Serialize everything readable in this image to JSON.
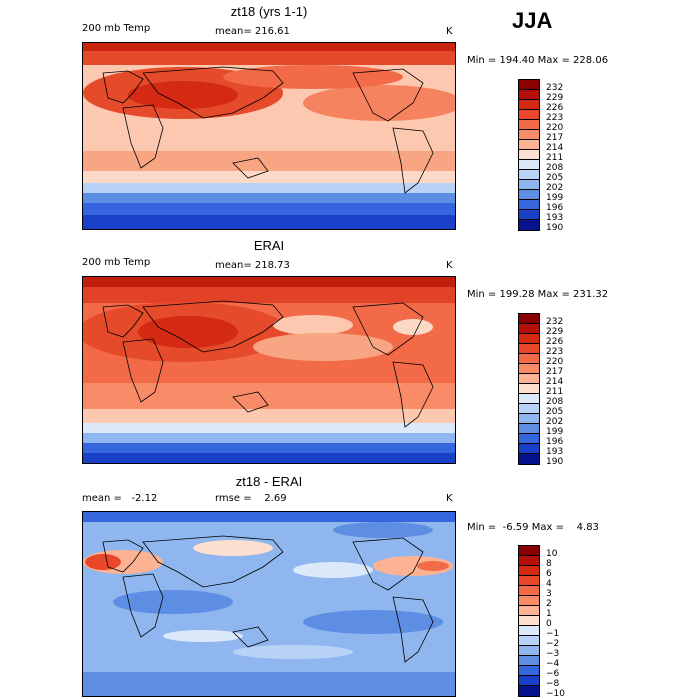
{
  "season": "JJA",
  "panels": [
    {
      "title": "zt18 (yrs 1-1)",
      "left_label": "200 mb Temp",
      "center_label": "mean= 216.61",
      "right_label": "",
      "units": "K",
      "min_max": "Min = 194.40 Max = 228.06",
      "colorbar_labels": [
        "232",
        "229",
        "226",
        "223",
        "220",
        "217",
        "214",
        "211",
        "208",
        "205",
        "202",
        "199",
        "196",
        "193",
        "190"
      ],
      "colorbar_colors": [
        "#8b0000",
        "#b40f0a",
        "#d42a14",
        "#e8472a",
        "#f26a47",
        "#f88b68",
        "#fcb293",
        "#fde0cf",
        "#dbe9fb",
        "#b9d3f6",
        "#8fb6ef",
        "#5e8ee3",
        "#3566dd",
        "#1a40c8",
        "#07128f"
      ]
    },
    {
      "title": "ERAI",
      "left_label": "200 mb Temp",
      "center_label": "mean= 218.73",
      "right_label": "",
      "units": "K",
      "min_max": "Min = 199.28 Max = 231.32",
      "colorbar_labels": [
        "232",
        "229",
        "226",
        "223",
        "220",
        "217",
        "214",
        "211",
        "208",
        "205",
        "202",
        "199",
        "196",
        "193",
        "190"
      ],
      "colorbar_colors": [
        "#8b0000",
        "#b40f0a",
        "#d42a14",
        "#e8472a",
        "#f26a47",
        "#f88b68",
        "#fcb293",
        "#fde0cf",
        "#dbe9fb",
        "#b9d3f6",
        "#8fb6ef",
        "#5e8ee3",
        "#3566dd",
        "#1a40c8",
        "#07128f"
      ]
    },
    {
      "title": "zt18 - ERAI",
      "left_label": "mean =   -2.12",
      "center_label": "rmse =    2.69",
      "right_label": "",
      "units": "K",
      "min_max": "Min =  -6.59 Max =    4.83",
      "colorbar_labels": [
        "10",
        "8",
        "6",
        "4",
        "3",
        "2",
        "1",
        "0",
        "−1",
        "−2",
        "−3",
        "−4",
        "−6",
        "−8",
        "−10"
      ],
      "colorbar_colors": [
        "#8b0000",
        "#b40f0a",
        "#d42a14",
        "#e8472a",
        "#f26a47",
        "#f88b68",
        "#fcb293",
        "#fde0cf",
        "#dbe9fb",
        "#b9d3f6",
        "#8fb6ef",
        "#5e8ee3",
        "#3566dd",
        "#1a40c8",
        "#07128f"
      ]
    }
  ]
}
